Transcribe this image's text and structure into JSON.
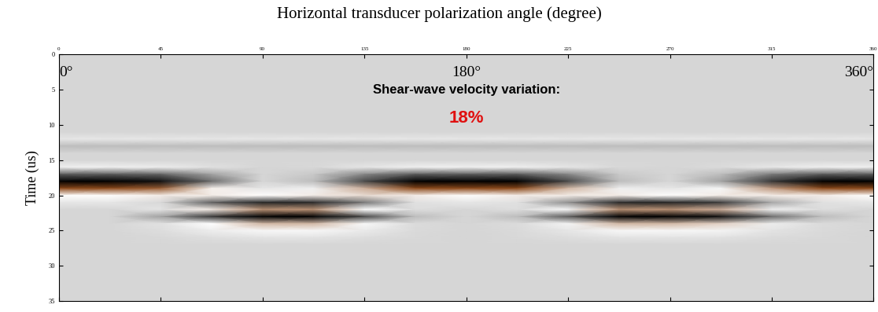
{
  "chart_data": {
    "type": "heatmap",
    "x_label": "Horizontal transducer polarization angle (degree)",
    "y_label": "Time (us)",
    "x": [
      0,
      22.5,
      45,
      67.5,
      90,
      112.5,
      135,
      157.5,
      180,
      202.5,
      225,
      247.5,
      270,
      292.5,
      315,
      337.5,
      360
    ],
    "y": [
      0,
      1,
      2,
      3,
      4,
      5,
      6,
      7,
      8,
      9,
      10,
      11,
      12,
      13,
      14,
      15,
      16,
      17,
      18,
      19,
      20,
      21,
      22,
      23,
      24,
      25,
      26,
      27,
      28,
      29,
      30,
      31,
      32,
      33,
      34,
      35
    ],
    "cells": [
      [
        0,
        0,
        0,
        0,
        0,
        0,
        0,
        0,
        0,
        0,
        0,
        0,
        0,
        0,
        0,
        0,
        0
      ],
      [
        0,
        0,
        0,
        0,
        0,
        0,
        0,
        0,
        0,
        0,
        0,
        0,
        0,
        0,
        0,
        0,
        0
      ],
      [
        0,
        0,
        0,
        0,
        0,
        0,
        0,
        0,
        0,
        0,
        0,
        0,
        0,
        0,
        0,
        0,
        0
      ],
      [
        0,
        0,
        0,
        0,
        0,
        0,
        0,
        0,
        0,
        0,
        0,
        0,
        0,
        0,
        0,
        0,
        0
      ],
      [
        0,
        0,
        0,
        0,
        0,
        0,
        0,
        0,
        0,
        0,
        0,
        0,
        0,
        0,
        0,
        0,
        0
      ],
      [
        0,
        0,
        0,
        0,
        0,
        0,
        0,
        0,
        0,
        0,
        0,
        0,
        0,
        0,
        0,
        0,
        0
      ],
      [
        0,
        0,
        0,
        0,
        0,
        0,
        0,
        0,
        0,
        0,
        0,
        0,
        0,
        0,
        0,
        0,
        0
      ],
      [
        0,
        0,
        0,
        0,
        0,
        0,
        0,
        0,
        0,
        0,
        0,
        0,
        0,
        0,
        0,
        0,
        0
      ],
      [
        0,
        0,
        0,
        0,
        0,
        0,
        0,
        0,
        0,
        0,
        0,
        0,
        0,
        0,
        0,
        0,
        0
      ],
      [
        0,
        0,
        0,
        0,
        0,
        0,
        0,
        0,
        0,
        0,
        0,
        0,
        0,
        0,
        0,
        0,
        0
      ],
      [
        0,
        0,
        0,
        0,
        0,
        0,
        0,
        0,
        0,
        0,
        0,
        0,
        0,
        0,
        0,
        0,
        0
      ],
      [
        0,
        0,
        0,
        0,
        0,
        0,
        0,
        0,
        0,
        0,
        0,
        0,
        0,
        0,
        0,
        0,
        0
      ],
      [
        0.2,
        0.2,
        0.2,
        0.2,
        0.2,
        0.2,
        0.2,
        0.2,
        0.2,
        0.2,
        0.2,
        0.2,
        0.2,
        0.2,
        0.2,
        0.2,
        0.2
      ],
      [
        -0.1,
        -0.1,
        -0.1,
        -0.1,
        -0.1,
        -0.1,
        -0.1,
        -0.1,
        -0.1,
        -0.1,
        -0.1,
        -0.1,
        -0.1,
        -0.1,
        -0.1,
        -0.1,
        -0.1
      ],
      [
        0,
        0,
        0,
        0,
        0,
        0,
        0,
        0,
        0,
        0,
        0,
        0,
        0,
        0,
        0,
        0,
        0
      ],
      [
        0,
        0,
        0,
        0,
        0,
        0,
        0,
        0,
        0,
        0,
        0,
        0,
        0,
        0,
        0,
        0,
        0
      ],
      [
        0.3,
        0.3,
        0.27,
        0.12,
        0,
        0.03,
        0.18,
        0.3,
        0.3,
        0.3,
        0.18,
        0.03,
        0,
        0.06,
        0.21,
        0.3,
        0.3
      ],
      [
        -0.5,
        -0.5,
        -0.45,
        -0.2,
        0,
        -0.05,
        -0.3,
        -0.5,
        -0.5,
        -0.5,
        -0.3,
        -0.05,
        0,
        -0.1,
        -0.35,
        -0.5,
        -0.5
      ],
      [
        -1,
        -1,
        -0.9,
        -0.4,
        0,
        -0.1,
        -0.6,
        -1,
        -1,
        -1,
        -0.6,
        -0.1,
        0,
        -0.2,
        -0.7,
        -1,
        -1
      ],
      [
        1,
        1,
        0.94,
        0.54,
        0.2,
        0.3,
        0.72,
        1,
        1,
        1,
        0.7,
        0.3,
        0.2,
        0.38,
        0.78,
        1,
        1
      ],
      [
        0.5,
        0.5,
        0.55,
        0.55,
        0.5,
        0.55,
        0.6,
        0.55,
        0.5,
        0.55,
        0.55,
        0.55,
        0.5,
        0.55,
        0.55,
        0.55,
        0.5
      ],
      [
        0.2,
        0.2,
        0.02,
        -0.48,
        -0.8,
        -0.78,
        -0.36,
        0.12,
        0.2,
        0.12,
        -0.28,
        -0.78,
        -0.8,
        -0.68,
        -0.18,
        0.12,
        0.2
      ],
      [
        0,
        0,
        0.16,
        0.56,
        0.8,
        0.8,
        0.48,
        0.08,
        0,
        0.08,
        0.4,
        0.8,
        0.8,
        0.72,
        0.32,
        0.08,
        0
      ],
      [
        0,
        0,
        -0.2,
        -0.7,
        -1,
        -1,
        -0.6,
        -0.1,
        0,
        -0.1,
        -0.5,
        -1,
        -1,
        -0.9,
        -0.4,
        -0.1,
        0
      ],
      [
        0,
        0,
        0.14,
        0.49,
        0.7,
        0.7,
        0.42,
        0.07,
        0,
        0.07,
        0.35,
        0.7,
        0.7,
        0.63,
        0.28,
        0.07,
        0
      ],
      [
        0,
        0,
        0.08,
        0.28,
        0.4,
        0.4,
        0.24,
        0.04,
        0,
        0.04,
        0.2,
        0.4,
        0.4,
        0.36,
        0.16,
        0.04,
        0
      ],
      [
        0,
        0,
        0.03,
        0.1,
        0.15,
        0.15,
        0.09,
        0.02,
        0,
        0.02,
        0.08,
        0.15,
        0.15,
        0.14,
        0.06,
        0.02,
        0
      ],
      [
        0,
        0,
        0,
        0,
        0,
        0,
        0,
        0,
        0,
        0,
        0,
        0,
        0,
        0,
        0,
        0,
        0
      ],
      [
        0,
        0,
        0,
        0,
        0,
        0,
        0,
        0,
        0,
        0,
        0,
        0,
        0,
        0,
        0,
        0,
        0
      ],
      [
        0,
        0,
        0,
        0,
        0,
        0,
        0,
        0,
        0,
        0,
        0,
        0,
        0,
        0,
        0,
        0,
        0
      ],
      [
        0,
        0,
        0,
        0,
        0,
        0,
        0,
        0,
        0,
        0,
        0,
        0,
        0,
        0,
        0,
        0,
        0
      ],
      [
        0,
        0,
        0,
        0,
        0,
        0,
        0,
        0,
        0,
        0,
        0,
        0,
        0,
        0,
        0,
        0,
        0
      ],
      [
        0,
        0,
        0,
        0,
        0,
        0,
        0,
        0,
        0,
        0,
        0,
        0,
        0,
        0,
        0,
        0,
        0
      ],
      [
        0,
        0,
        0,
        0,
        0,
        0,
        0,
        0,
        0,
        0,
        0,
        0,
        0,
        0,
        0,
        0,
        0
      ],
      [
        0,
        0,
        0,
        0,
        0,
        0,
        0,
        0,
        0,
        0,
        0,
        0,
        0,
        0,
        0,
        0,
        0
      ],
      [
        0,
        0,
        0,
        0,
        0,
        0,
        0,
        0,
        0,
        0,
        0,
        0,
        0,
        0,
        0,
        0,
        0
      ]
    ],
    "clim": [
      -1,
      1
    ],
    "xlim": [
      0,
      360
    ],
    "xticks": [
      0,
      45,
      90,
      135,
      180,
      225,
      270,
      315,
      360
    ],
    "ylim": [
      0,
      35
    ],
    "yticks": [
      0,
      5,
      10,
      15,
      20,
      25,
      30,
      35
    ],
    "grid": false,
    "angle_labels": [
      "0°",
      "180°",
      "360°"
    ],
    "annotations": [
      {
        "text": "Shear-wave velocity variation:",
        "color": "#000000"
      },
      {
        "text": "18%",
        "color": "#e01010"
      }
    ]
  }
}
